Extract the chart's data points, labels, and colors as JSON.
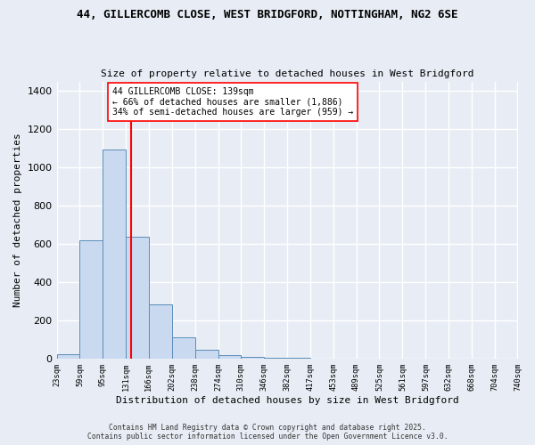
{
  "title_line1": "44, GILLERCOMB CLOSE, WEST BRIDGFORD, NOTTINGHAM, NG2 6SE",
  "title_line2": "Size of property relative to detached houses in West Bridgford",
  "xlabel": "Distribution of detached houses by size in West Bridgford",
  "ylabel": "Number of detached properties",
  "bar_edges": [
    23,
    59,
    95,
    131,
    166,
    202,
    238,
    274,
    310,
    346,
    382,
    417,
    453,
    489,
    525,
    561,
    597,
    632,
    668,
    704,
    740
  ],
  "bar_heights": [
    25,
    620,
    1095,
    640,
    285,
    110,
    45,
    20,
    10,
    5,
    5,
    0,
    0,
    0,
    0,
    0,
    0,
    0,
    0,
    0
  ],
  "bar_color": "#c9d9f0",
  "bar_edge_color": "#5b8db8",
  "vline_x": 139,
  "vline_color": "red",
  "annotation_text": "44 GILLERCOMB CLOSE: 139sqm\n← 66% of detached houses are smaller (1,886)\n34% of semi-detached houses are larger (959) →",
  "annotation_box_color": "white",
  "annotation_box_edge": "red",
  "ylim": [
    0,
    1450
  ],
  "yticks": [
    0,
    200,
    400,
    600,
    800,
    1000,
    1200,
    1400
  ],
  "bg_color": "#e8edf5",
  "grid_color": "white",
  "footer_line1": "Contains HM Land Registry data © Crown copyright and database right 2025.",
  "footer_line2": "Contains public sector information licensed under the Open Government Licence v3.0.",
  "tick_labels": [
    "23sqm",
    "59sqm",
    "95sqm",
    "131sqm",
    "166sqm",
    "202sqm",
    "238sqm",
    "274sqm",
    "310sqm",
    "346sqm",
    "382sqm",
    "417sqm",
    "453sqm",
    "489sqm",
    "525sqm",
    "561sqm",
    "597sqm",
    "632sqm",
    "668sqm",
    "704sqm",
    "740sqm"
  ]
}
